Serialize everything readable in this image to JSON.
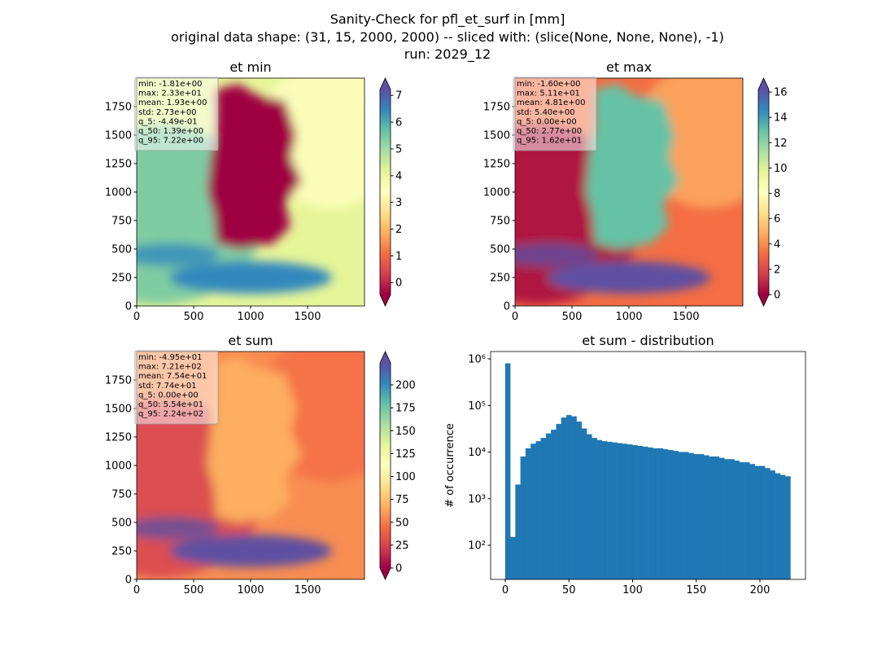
{
  "title": [
    "Sanity-Check for pfl_et_surf in [mm]",
    "original data shape: (31, 15, 2000, 2000) -- sliced with: (slice(None, None, None), -1)",
    "run: 2029_12"
  ],
  "chart_data": [
    {
      "type": "heatmap",
      "title": "et min",
      "cmap": "Spectral",
      "xlim": [
        0,
        2000
      ],
      "xticks": [
        0,
        500,
        1000,
        1500
      ],
      "ylim": [
        0,
        2000
      ],
      "yticks": [
        0,
        250,
        500,
        750,
        1000,
        1250,
        1500,
        1750
      ],
      "annotations": [
        "min: -1.81e+00",
        "max: 2.33e+01",
        "mean: 1.93e+00",
        "std: 2.73e+00",
        "q_5: -4.49e-01",
        "q_50: 1.39e+00",
        "q_95: 7.22e+00"
      ],
      "colorbar": {
        "clim": [
          -0.449,
          7.22
        ],
        "ticks": [
          0,
          1,
          2,
          3,
          4,
          5,
          6,
          7
        ]
      }
    },
    {
      "type": "heatmap",
      "title": "et max",
      "cmap": "Spectral",
      "xlim": [
        0,
        2000
      ],
      "xticks": [
        0,
        500,
        1000,
        1500
      ],
      "ylim": [
        0,
        2000
      ],
      "yticks": [
        0,
        250,
        500,
        750,
        1000,
        1250,
        1500,
        1750
      ],
      "annotations": [
        "min: -1.60e+00",
        "max: 5.11e+01",
        "mean: 4.81e+00",
        "std: 5.40e+00",
        "q_5: 0.00e+00",
        "q_50: 2.77e+00",
        "q_95: 1.62e+01"
      ],
      "colorbar": {
        "clim": [
          0,
          16.2
        ],
        "ticks": [
          0,
          2,
          4,
          6,
          8,
          10,
          12,
          14,
          16
        ]
      }
    },
    {
      "type": "heatmap",
      "title": "et sum",
      "cmap": "Spectral",
      "xlim": [
        0,
        2000
      ],
      "xticks": [
        0,
        500,
        1000,
        1500
      ],
      "ylim": [
        0,
        2000
      ],
      "yticks": [
        0,
        250,
        500,
        750,
        1000,
        1250,
        1500,
        1750
      ],
      "annotations": [
        "min: -4.95e+01",
        "max: 7.21e+02",
        "mean: 7.54e+01",
        "std: 7.74e+01",
        "q_5: 0.00e+00",
        "q_50: 5.54e+01",
        "q_95: 2.24e+02"
      ],
      "colorbar": {
        "clim": [
          0,
          224
        ],
        "ticks": [
          0,
          25,
          50,
          75,
          100,
          125,
          150,
          175,
          200
        ]
      }
    },
    {
      "type": "histogram",
      "title": "et sum - distribution",
      "ylabel": "# of occurrence",
      "color": "#1f77b4",
      "log_y": true,
      "xlim": [
        -11.5,
        235.8
      ],
      "xticks": [
        0,
        50,
        100,
        150,
        200
      ],
      "ylim": [
        18.5,
        1440000
      ],
      "yticks": [
        {
          "value": 100,
          "label": "10²"
        },
        {
          "value": 1000,
          "label": "10³"
        },
        {
          "value": 10000,
          "label": "10⁴"
        },
        {
          "value": 100000,
          "label": "10⁵"
        },
        {
          "value": 1000000,
          "label": "10⁶"
        }
      ],
      "bins": [
        0,
        4,
        8,
        12,
        16,
        20,
        24,
        28,
        32,
        36,
        40,
        44,
        48,
        52,
        56,
        60,
        64,
        68,
        72,
        76,
        80,
        84,
        88,
        92,
        96,
        100,
        104,
        108,
        112,
        116,
        120,
        124,
        128,
        132,
        136,
        140,
        144,
        148,
        152,
        156,
        160,
        164,
        168,
        172,
        176,
        180,
        184,
        188,
        192,
        196,
        200,
        204,
        208,
        212,
        216,
        220,
        224
      ],
      "counts": [
        800000,
        150,
        2000,
        8000,
        12000,
        15000,
        17000,
        20000,
        25000,
        30000,
        40000,
        55000,
        62000,
        58000,
        45000,
        32000,
        24000,
        20000,
        18000,
        17000,
        16500,
        16000,
        15500,
        15000,
        14500,
        14000,
        13500,
        13000,
        12500,
        12000,
        12000,
        11500,
        11000,
        10500,
        10000,
        10000,
        9500,
        9000,
        9000,
        8500,
        8000,
        8000,
        7500,
        7000,
        7000,
        6500,
        6000,
        6000,
        5500,
        5000,
        5000,
        4500,
        4000,
        3500,
        3200,
        3000
      ]
    }
  ]
}
